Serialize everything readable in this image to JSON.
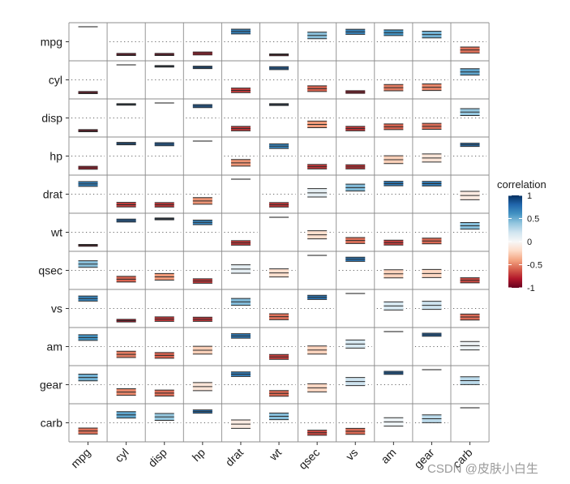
{
  "chart_data": {
    "type": "heatmap",
    "title": "",
    "variables": [
      "mpg",
      "cyl",
      "disp",
      "hp",
      "drat",
      "wt",
      "qsec",
      "vs",
      "am",
      "gear",
      "carb"
    ],
    "value_note": "Pairwise Pearson correlation matrix of mtcars; each cell shows a box centered at the correlation value (y range -1..1) with its confidence interval.",
    "ylim": [
      -1,
      1
    ],
    "matrix": [
      [
        1.0,
        -0.85,
        -0.85,
        -0.78,
        0.68,
        -0.87,
        0.42,
        0.66,
        0.6,
        0.48,
        -0.55
      ],
      [
        -0.85,
        1.0,
        0.9,
        0.83,
        -0.7,
        0.78,
        -0.59,
        -0.81,
        -0.52,
        -0.49,
        0.53
      ],
      [
        -0.85,
        0.9,
        1.0,
        0.79,
        -0.71,
        0.89,
        -0.43,
        -0.71,
        -0.59,
        -0.56,
        0.39
      ],
      [
        -0.78,
        0.83,
        0.79,
        1.0,
        -0.45,
        0.66,
        -0.71,
        -0.72,
        -0.24,
        -0.13,
        0.75
      ],
      [
        0.68,
        -0.7,
        -0.71,
        -0.45,
        1.0,
        -0.71,
        0.09,
        0.44,
        0.71,
        0.7,
        -0.09
      ],
      [
        -0.87,
        0.78,
        0.89,
        0.66,
        -0.71,
        1.0,
        -0.17,
        -0.55,
        -0.69,
        -0.58,
        0.43
      ],
      [
        0.42,
        -0.59,
        -0.43,
        -0.71,
        0.09,
        -0.17,
        1.0,
        0.74,
        -0.23,
        -0.21,
        -0.66
      ],
      [
        0.66,
        -0.81,
        -0.71,
        -0.72,
        0.44,
        -0.55,
        0.74,
        1.0,
        0.17,
        0.21,
        -0.57
      ],
      [
        0.6,
        -0.52,
        -0.59,
        -0.24,
        0.71,
        -0.69,
        -0.23,
        0.17,
        1.0,
        0.79,
        0.06
      ],
      [
        0.48,
        -0.49,
        -0.56,
        -0.13,
        0.7,
        -0.58,
        -0.21,
        0.21,
        0.79,
        1.0,
        0.27
      ],
      [
        -0.55,
        0.53,
        0.39,
        0.75,
        -0.09,
        0.43,
        -0.66,
        -0.57,
        0.06,
        0.27,
        1.0
      ]
    ],
    "ci_halfwidth": [
      [
        0.0,
        0.07,
        0.07,
        0.1,
        0.16,
        0.06,
        0.22,
        0.17,
        0.19,
        0.22,
        0.2
      ],
      [
        0.07,
        0.0,
        0.05,
        0.08,
        0.15,
        0.1,
        0.19,
        0.09,
        0.21,
        0.22,
        0.21
      ],
      [
        0.07,
        0.05,
        0.0,
        0.1,
        0.15,
        0.06,
        0.22,
        0.15,
        0.19,
        0.2,
        0.23
      ],
      [
        0.1,
        0.08,
        0.1,
        0.0,
        0.22,
        0.15,
        0.15,
        0.14,
        0.26,
        0.27,
        0.11
      ],
      [
        0.16,
        0.15,
        0.15,
        0.22,
        0.0,
        0.15,
        0.28,
        0.23,
        0.15,
        0.15,
        0.28
      ],
      [
        0.06,
        0.1,
        0.06,
        0.15,
        0.15,
        0.0,
        0.27,
        0.2,
        0.16,
        0.19,
        0.22
      ],
      [
        0.22,
        0.19,
        0.22,
        0.15,
        0.28,
        0.27,
        0.0,
        0.14,
        0.27,
        0.27,
        0.17
      ],
      [
        0.17,
        0.09,
        0.15,
        0.14,
        0.23,
        0.2,
        0.14,
        0.0,
        0.27,
        0.27,
        0.2
      ],
      [
        0.19,
        0.21,
        0.19,
        0.26,
        0.15,
        0.16,
        0.27,
        0.27,
        0.0,
        0.1,
        0.28
      ],
      [
        0.22,
        0.22,
        0.2,
        0.27,
        0.15,
        0.19,
        0.27,
        0.27,
        0.1,
        0.0,
        0.26
      ],
      [
        0.2,
        0.21,
        0.23,
        0.11,
        0.28,
        0.22,
        0.17,
        0.2,
        0.28,
        0.26,
        0.0
      ]
    ],
    "legend": {
      "title": "correlation",
      "placement": "right",
      "ticks": [
        1,
        0.5,
        0,
        -0.5,
        -1
      ],
      "tick_labels": [
        "1",
        "0.5",
        "0",
        "-0.5",
        "-1"
      ],
      "colors": [
        "#67001F",
        "#B2182B",
        "#D6604D",
        "#F4A582",
        "#FDDBC7",
        "#F7F7F7",
        "#D1E5F0",
        "#92C5DE",
        "#4393C3",
        "#2166AC",
        "#053061"
      ]
    },
    "grid": true
  },
  "watermark": "CSDN @皮肤小白生"
}
